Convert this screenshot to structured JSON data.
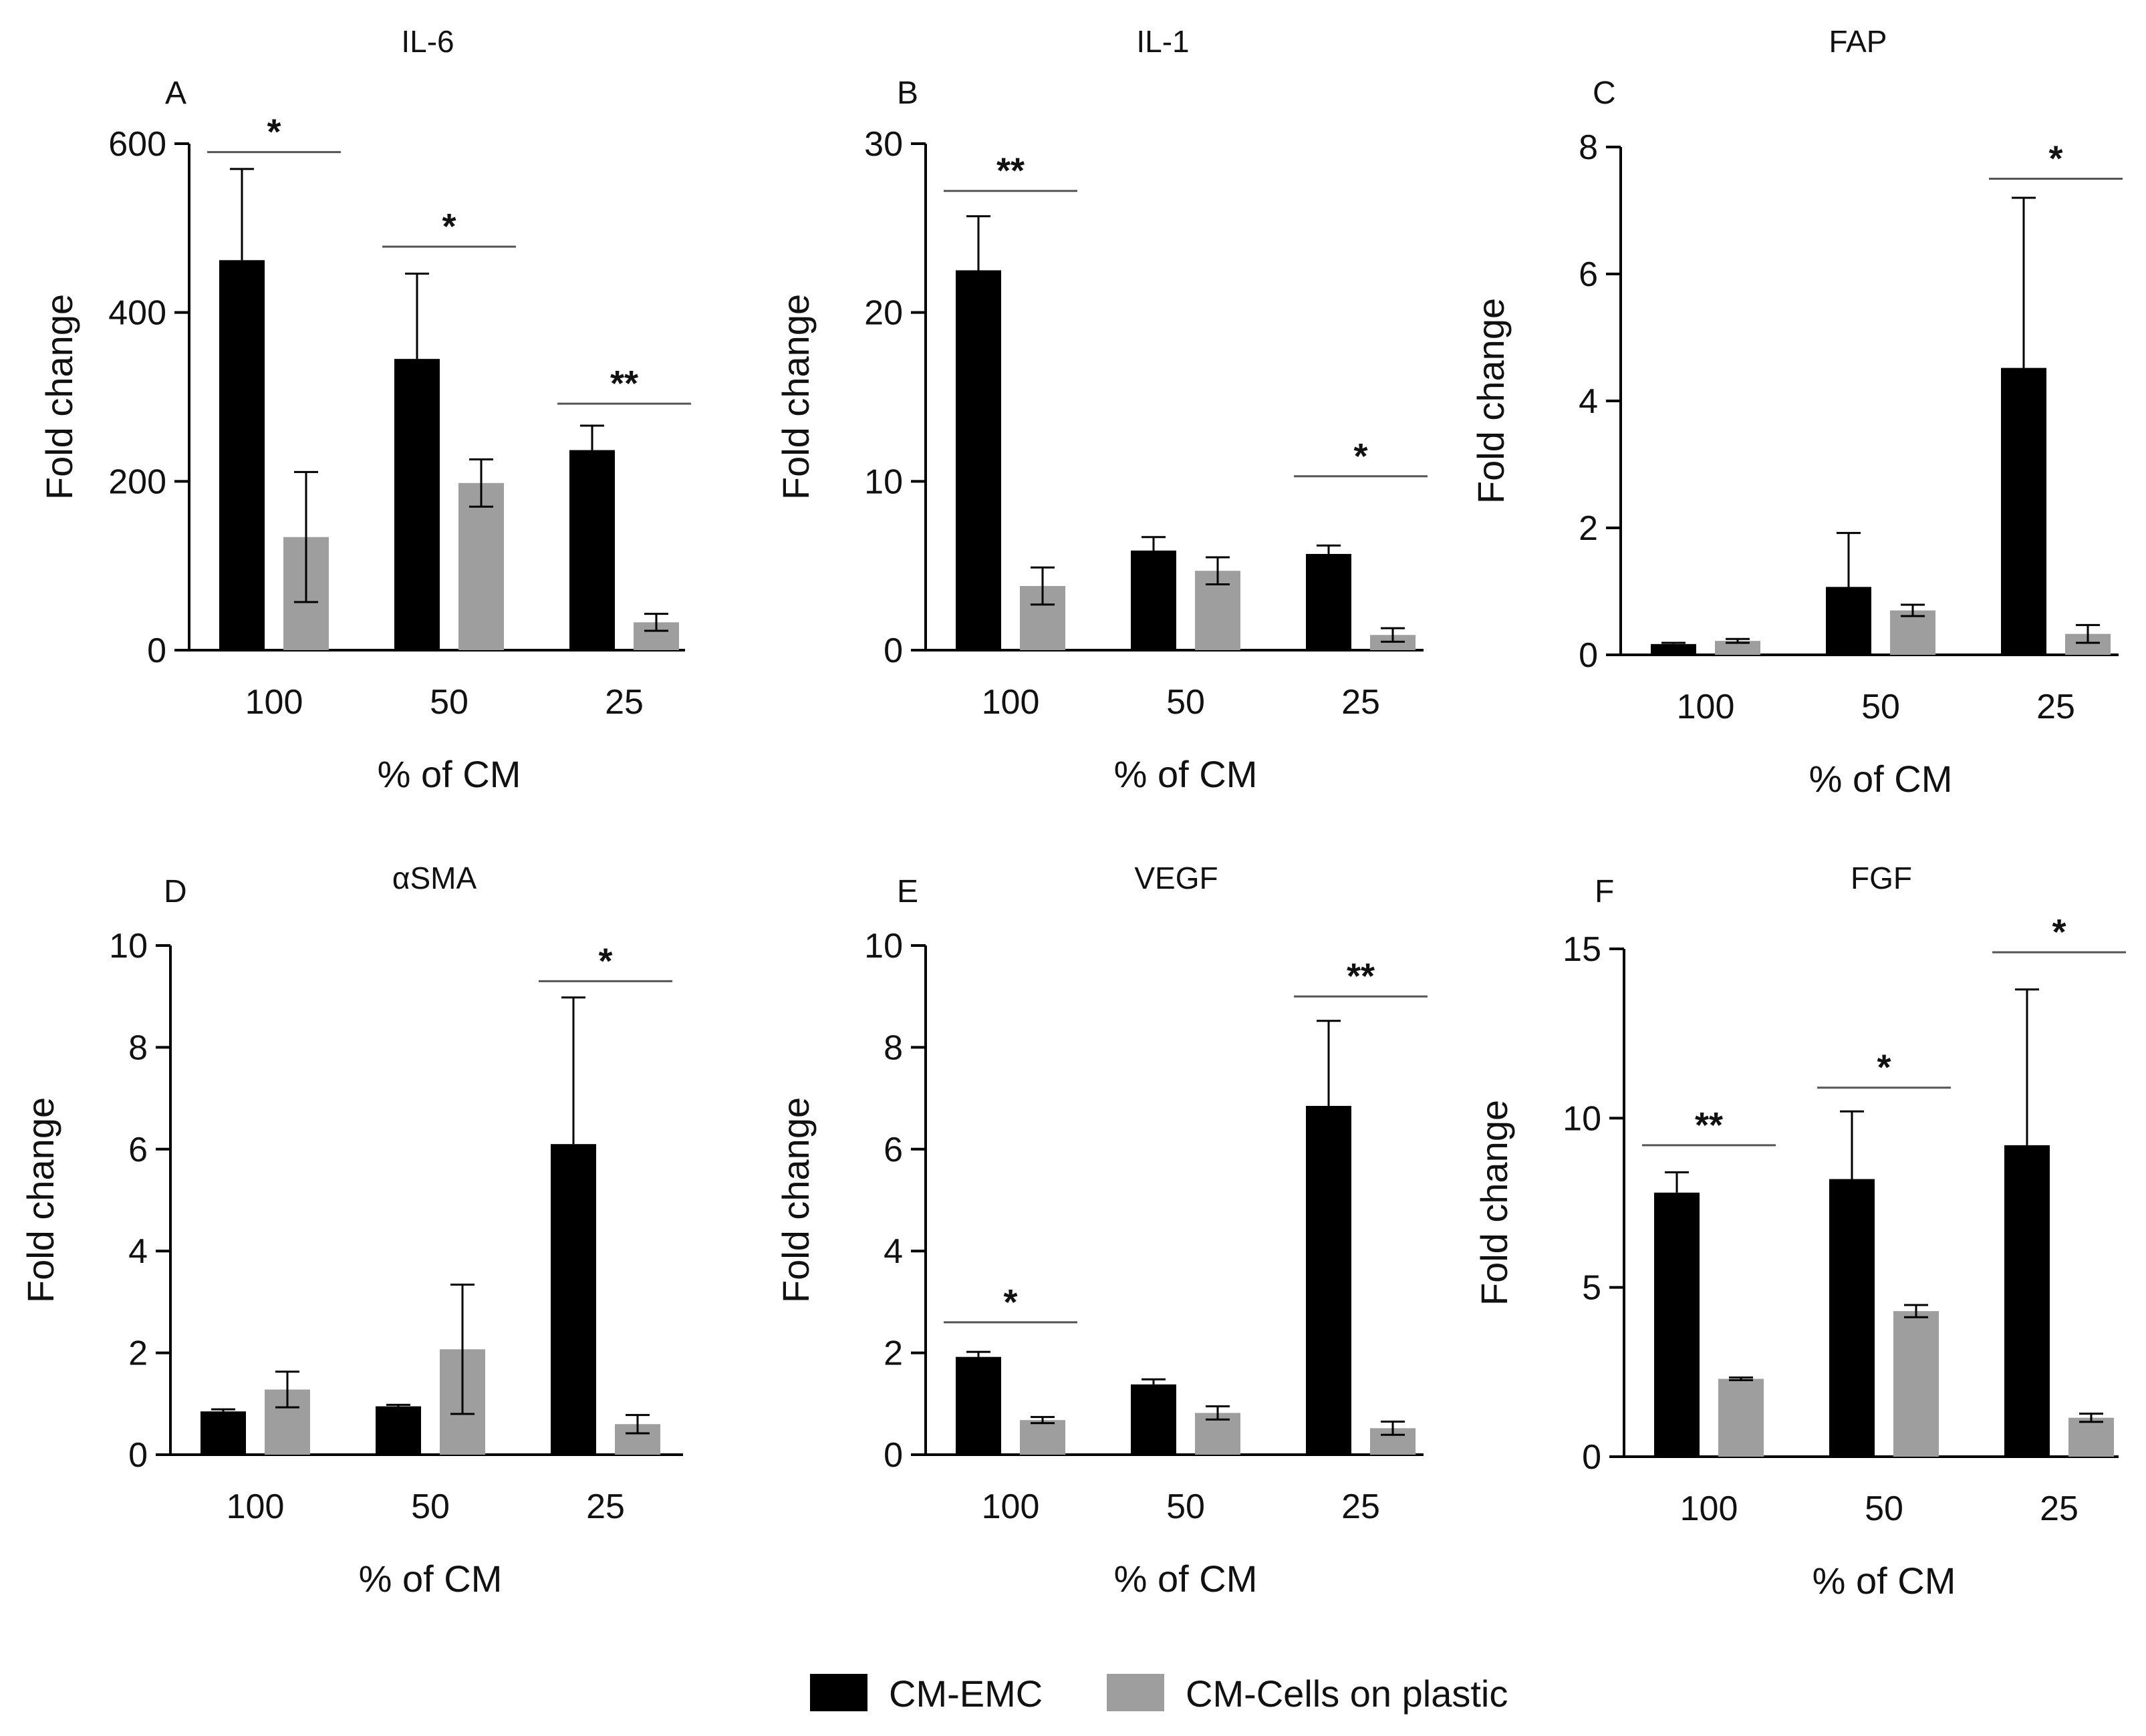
{
  "chart_data": [
    {
      "type": "bar",
      "panel": "A",
      "title": "IL-6",
      "xlabel": "% of CM",
      "ylabel": "Fold change",
      "ylim": [
        0,
        600
      ],
      "yticks": [
        0,
        200,
        400,
        600
      ],
      "categories": [
        "100",
        "50",
        "25"
      ],
      "series": [
        {
          "name": "CM-EMC",
          "color": "#000000",
          "values": [
            462,
            345,
            237
          ],
          "errors": [
            108,
            101,
            29
          ]
        },
        {
          "name": "CM-Cells on plastic",
          "color": "#9e9e9e",
          "values": [
            134,
            198,
            33
          ],
          "errors": [
            77,
            28,
            10
          ]
        }
      ],
      "significance": [
        {
          "category": "100",
          "label": "*",
          "bar_y": 590
        },
        {
          "category": "50",
          "label": "*",
          "bar_y": 478
        },
        {
          "category": "25",
          "label": "**",
          "bar_y": 292
        }
      ]
    },
    {
      "type": "bar",
      "panel": "B",
      "title": "IL-1",
      "xlabel": "% of CM",
      "ylabel": "Fold change",
      "ylim": [
        0,
        30
      ],
      "yticks": [
        0,
        10,
        20,
        30
      ],
      "categories": [
        "100",
        "50",
        "25"
      ],
      "series": [
        {
          "name": "CM-EMC",
          "color": "#000000",
          "values": [
            22.5,
            5.9,
            5.7
          ],
          "errors": [
            3.2,
            0.8,
            0.5
          ]
        },
        {
          "name": "CM-Cells on plastic",
          "color": "#9e9e9e",
          "values": [
            3.8,
            4.7,
            0.9
          ],
          "errors": [
            1.1,
            0.8,
            0.4
          ]
        }
      ],
      "significance": [
        {
          "category": "100",
          "label": "**",
          "bar_y": 27.2
        },
        {
          "category": "25",
          "label": "*",
          "bar_y": 10.3
        }
      ]
    },
    {
      "type": "bar",
      "panel": "C",
      "title": "FAP",
      "xlabel": "% of CM",
      "ylabel": "Fold change",
      "ylim": [
        0,
        8
      ],
      "yticks": [
        0,
        2,
        4,
        6,
        8
      ],
      "categories": [
        "100",
        "50",
        "25"
      ],
      "series": [
        {
          "name": "CM-EMC",
          "color": "#000000",
          "values": [
            0.17,
            1.07,
            4.52
          ],
          "errors": [
            0.02,
            0.85,
            2.68
          ]
        },
        {
          "name": "CM-Cells on plastic",
          "color": "#9e9e9e",
          "values": [
            0.22,
            0.7,
            0.33
          ],
          "errors": [
            0.03,
            0.09,
            0.14
          ]
        }
      ],
      "significance": [
        {
          "category": "25",
          "label": "*",
          "bar_y": 7.5
        }
      ]
    },
    {
      "type": "bar",
      "panel": "D",
      "title": "αSMA",
      "xlabel": "% of CM",
      "ylabel": "Fold change",
      "ylim": [
        0,
        10
      ],
      "yticks": [
        0,
        2,
        4,
        6,
        8,
        10
      ],
      "categories": [
        "100",
        "50",
        "25"
      ],
      "series": [
        {
          "name": "CM-EMC",
          "color": "#000000",
          "values": [
            0.85,
            0.95,
            6.1
          ],
          "errors": [
            0.04,
            0.03,
            2.88
          ]
        },
        {
          "name": "CM-Cells on plastic",
          "color": "#9e9e9e",
          "values": [
            1.28,
            2.07,
            0.6
          ],
          "errors": [
            0.35,
            1.27,
            0.18
          ]
        }
      ],
      "significance": [
        {
          "category": "25",
          "label": "*",
          "bar_y": 9.3
        }
      ]
    },
    {
      "type": "bar",
      "panel": "E",
      "title": "VEGF",
      "xlabel": "% of CM",
      "ylabel": "Fold change",
      "ylim": [
        0,
        10
      ],
      "yticks": [
        0,
        2,
        4,
        6,
        8,
        10
      ],
      "categories": [
        "100",
        "50",
        "25"
      ],
      "series": [
        {
          "name": "CM-EMC",
          "color": "#000000",
          "values": [
            1.92,
            1.38,
            6.85
          ],
          "errors": [
            0.1,
            0.1,
            1.67
          ]
        },
        {
          "name": "CM-Cells on plastic",
          "color": "#9e9e9e",
          "values": [
            0.68,
            0.82,
            0.52
          ],
          "errors": [
            0.06,
            0.13,
            0.13
          ]
        }
      ],
      "significance": [
        {
          "category": "100",
          "label": "*",
          "bar_y": 2.6
        },
        {
          "category": "25",
          "label": "**",
          "bar_y": 9.0
        }
      ]
    },
    {
      "type": "bar",
      "panel": "F",
      "title": "FGF",
      "xlabel": "% of CM",
      "ylabel": "Fold change",
      "ylim": [
        0,
        15
      ],
      "yticks": [
        0,
        5,
        10,
        15
      ],
      "categories": [
        "100",
        "50",
        "25"
      ],
      "series": [
        {
          "name": "CM-EMC",
          "color": "#000000",
          "values": [
            7.8,
            8.2,
            9.2
          ],
          "errors": [
            0.6,
            2.0,
            4.6
          ]
        },
        {
          "name": "CM-Cells on plastic",
          "color": "#9e9e9e",
          "values": [
            2.3,
            4.3,
            1.15
          ],
          "errors": [
            0.04,
            0.18,
            0.12
          ]
        }
      ],
      "significance": [
        {
          "category": "100",
          "label": "**",
          "bar_y": 9.2
        },
        {
          "category": "50",
          "label": "*",
          "bar_y": 10.9
        },
        {
          "category": "25",
          "label": "*",
          "bar_y": 14.9
        }
      ]
    }
  ],
  "legend": {
    "items": [
      {
        "label": "CM-EMC",
        "color": "#000000"
      },
      {
        "label": "CM-Cells on plastic",
        "color": "#9e9e9e"
      }
    ]
  }
}
